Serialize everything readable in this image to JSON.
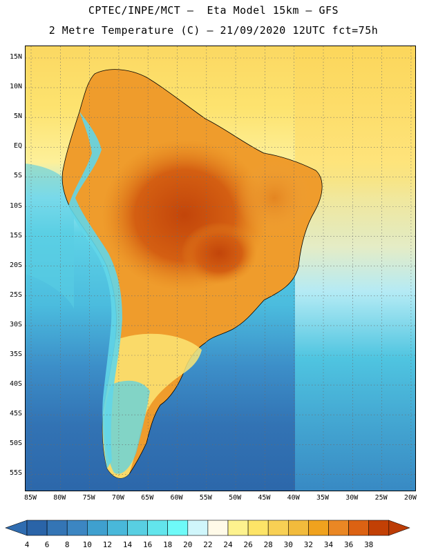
{
  "header": {
    "title_line1": "CPTEC/INPE/MCT –  Eta Model 15km – GFS",
    "title_line2": "2 Metre Temperature (C) – 21/09/2020 12UTC fct=75h"
  },
  "map": {
    "region": "South America",
    "variable": "2 Metre Temperature",
    "units": "C",
    "lat_labels": [
      "15N",
      "10N",
      "5N",
      "EQ",
      "5S",
      "10S",
      "15S",
      "20S",
      "25S",
      "30S",
      "35S",
      "40S",
      "45S",
      "50S",
      "55S"
    ],
    "lon_labels": [
      "85W",
      "80W",
      "75W",
      "70W",
      "65W",
      "60W",
      "55W",
      "50W",
      "45W",
      "40W",
      "35W",
      "30W",
      "25W",
      "20W"
    ],
    "grid": "dotted"
  },
  "colorbar": {
    "labels": [
      "4",
      "6",
      "8",
      "10",
      "12",
      "14",
      "16",
      "18",
      "20",
      "22",
      "24",
      "26",
      "28",
      "30",
      "32",
      "34",
      "36",
      "38"
    ],
    "colors": [
      "#2a64a8",
      "#3475b5",
      "#3c86c2",
      "#3fa0cf",
      "#49b8da",
      "#58cfe2",
      "#62e5ec",
      "#6efaf8",
      "#d0f6fb",
      "#fffae8",
      "#fdf28e",
      "#fde467",
      "#f8d054",
      "#f2bb3c",
      "#f0a21e",
      "#ea8724",
      "#dc6213",
      "#c24005"
    ],
    "low_end_color": "#2f6cb0",
    "high_end_color": "#bc3c06"
  },
  "colors": {
    "ocean_south": "#2e68ad",
    "ocean_mid": "#45b6d9",
    "ocean_tropical": "#fce26a",
    "land_hot": "#e58a22",
    "land_hottest": "#c8500c",
    "andes": "#62d6e8"
  }
}
